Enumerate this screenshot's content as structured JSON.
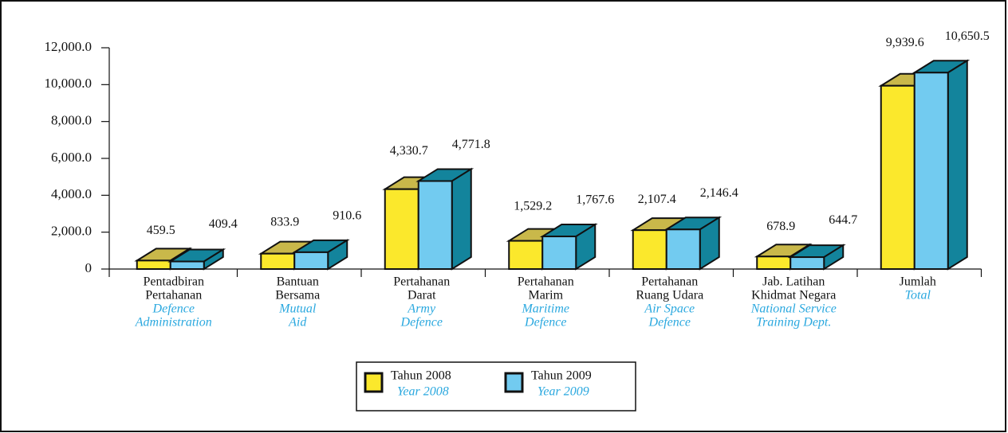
{
  "chart_data": {
    "type": "bar3d",
    "categories": [
      [
        "Pentadbiran",
        "Pertahanan"
      ],
      [
        "Bantuan",
        "Bersama"
      ],
      [
        "Pertahanan",
        "Darat"
      ],
      [
        "Pertahanan",
        "Marim"
      ],
      [
        "Pertahanan",
        "Ruang Udara"
      ],
      [
        "Jab. Latihan",
        "Khidmat Negara"
      ],
      [
        "Jumlah"
      ]
    ],
    "categories_en": [
      [
        "Defence",
        "Administration"
      ],
      [
        "Mutual",
        "Aid"
      ],
      [
        "Army",
        "Defence"
      ],
      [
        "Maritime",
        "Defence"
      ],
      [
        "Air Space",
        "Defence"
      ],
      [
        "National Service",
        "Training Dept."
      ],
      [
        "Total"
      ]
    ],
    "series": [
      {
        "name": "Tahun 2008",
        "name_en": "Year 2008",
        "color": "#fbe82c",
        "top_color": "#c9b84a",
        "values": [
          459.5,
          833.9,
          4330.7,
          1529.2,
          2107.4,
          678.9,
          9939.6
        ],
        "value_labels": [
          "459.5",
          "833.9",
          "4,330.7",
          "1,529.2",
          "2,107.4",
          "678.9",
          "9,939.6"
        ]
      },
      {
        "name": "Tahun 2009",
        "name_en": "Year 2009",
        "color": "#72cbf0",
        "top_color": "#13849c",
        "values": [
          409.4,
          910.6,
          4771.8,
          1767.6,
          2146.4,
          644.7,
          10650.5
        ],
        "value_labels": [
          "409.4",
          "910.6",
          "4,771.8",
          "1,767.6",
          "2,146.4",
          "644.7",
          "10,650.5"
        ]
      }
    ],
    "ylim": [
      0,
      12000
    ],
    "yticks": [
      0,
      {
        "value": 2000,
        "label": "2,000.0"
      },
      {
        "value": 4000,
        "label": "4,000.0"
      },
      {
        "value": 6000,
        "label": "6,000.0"
      },
      {
        "value": 8000,
        "label": "8,000.0"
      },
      {
        "value": 10000,
        "label": "10,000.0"
      },
      {
        "value": 12000,
        "label": "12,000.0"
      }
    ]
  }
}
